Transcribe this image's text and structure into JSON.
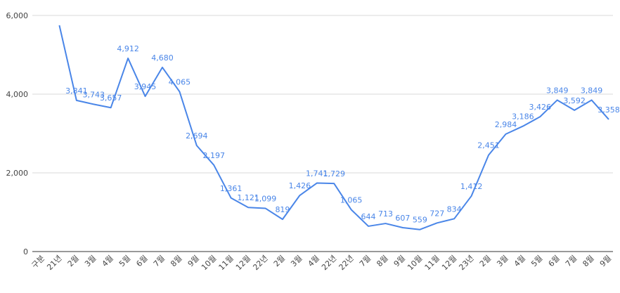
{
  "chart_data": {
    "type": "line",
    "title": "",
    "xlabel": "",
    "ylabel": "",
    "ylim": [
      0,
      6000
    ],
    "yticks": [
      "0",
      "2,000",
      "4,000",
      "6,000"
    ],
    "grid": true,
    "legend": "none",
    "colors": {
      "line": "#4a86e8",
      "grid": "#d9d9d9",
      "axis": "#333333"
    },
    "categories": [
      "구분",
      "21년",
      "2월",
      "3월",
      "4월",
      "5월",
      "6월",
      "7월",
      "8월",
      "9월",
      "10월",
      "11월",
      "12월",
      "22년",
      "2월",
      "3월",
      "4월",
      "22년",
      "22년",
      "7월",
      "8월",
      "9월",
      "10월",
      "11월",
      "12월",
      "23년",
      "2월",
      "3월",
      "4월",
      "5월",
      "6월",
      "7월",
      "8월",
      "9월"
    ],
    "series": [
      {
        "values": [
          null,
          5750,
          3841,
          3743,
          3657,
          4912,
          3945,
          4680,
          4065,
          2694,
          2197,
          1361,
          1121,
          1099,
          819,
          1426,
          1741,
          1729,
          1065,
          644,
          713,
          607,
          559,
          727,
          834,
          1412,
          2451,
          2984,
          3186,
          3426,
          3849,
          3592,
          3849,
          3358
        ],
        "data_labels": [
          null,
          null,
          "3,841",
          "3,743",
          "3,657",
          "4,912",
          "3,945",
          "4,680",
          "4,065",
          "2,694",
          "2,197",
          "1,361",
          "1,121",
          "1,099",
          "819",
          "1,426",
          "1,741",
          "1,729",
          "1,065",
          "644",
          "713",
          "607",
          "559",
          "727",
          "834",
          "1,412",
          "2,451",
          "2,984",
          "3,186",
          "3,426",
          "3,849",
          "3,592",
          "3,849",
          "3,358"
        ]
      }
    ]
  }
}
